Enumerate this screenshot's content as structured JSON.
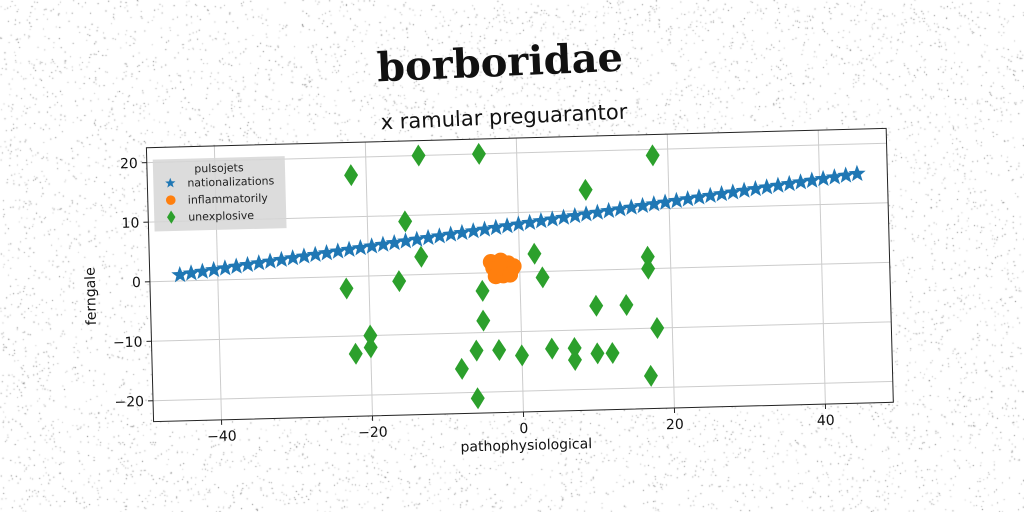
{
  "chart_data": {
    "type": "scatter",
    "suptitle": "borboridae",
    "title": "x ramular preguarantor",
    "xlabel": "pathophysiological",
    "ylabel": "ferngale",
    "xlim": [
      -49,
      49
    ],
    "ylim": [
      -23.5,
      22.5
    ],
    "xticks": [
      -40,
      -20,
      0,
      20,
      40
    ],
    "yticks": [
      -20,
      -10,
      0,
      10,
      20
    ],
    "xtick_labels": [
      "−40",
      "−20",
      "0",
      "20",
      "40"
    ],
    "ytick_labels": [
      "−20",
      "−10",
      "0",
      "10",
      "20"
    ],
    "grid": true,
    "legend": {
      "title": "pulsojets",
      "placement": "top-left"
    },
    "series": [
      {
        "name": "nationalizations",
        "marker": "star",
        "color": "#1f77b4",
        "x_start": -45,
        "x_end": 45,
        "y_start": 1.0,
        "y_end": 15.0,
        "count": 61
      },
      {
        "name": "inflammatorily",
        "marker": "circle",
        "color": "#ff7f0e",
        "points": [
          [
            -3.5,
            0.8
          ],
          [
            -2.8,
            1.2
          ],
          [
            -2.0,
            0.4
          ],
          [
            -1.5,
            1.5
          ],
          [
            -3.0,
            0.0
          ],
          [
            -2.2,
            -0.5
          ],
          [
            -1.0,
            0.6
          ],
          [
            -3.8,
            1.8
          ],
          [
            -2.5,
            2.0
          ],
          [
            -1.8,
            -0.2
          ],
          [
            -3.2,
            -0.6
          ],
          [
            -0.8,
            1.0
          ],
          [
            -2.6,
            0.9
          ],
          [
            -1.3,
            -0.4
          ]
        ]
      },
      {
        "name": "unexplosive",
        "marker": "diamond",
        "color": "#2ca02c",
        "points": [
          [
            -22,
            17
          ],
          [
            -13,
            20
          ],
          [
            -5,
            20
          ],
          [
            18,
            19
          ],
          [
            9,
            13.5
          ],
          [
            -15,
            9
          ],
          [
            -13,
            3
          ],
          [
            2,
            3
          ],
          [
            3,
            -1
          ],
          [
            17,
            2
          ],
          [
            17,
            0
          ],
          [
            -23,
            -2
          ],
          [
            -16,
            -1
          ],
          [
            -5,
            -3
          ],
          [
            10,
            -6
          ],
          [
            14,
            -6
          ],
          [
            -5,
            -8
          ],
          [
            18,
            -10
          ],
          [
            -20,
            -10
          ],
          [
            -22,
            -13
          ],
          [
            -20,
            -12
          ],
          [
            -6,
            -13
          ],
          [
            -3,
            -13
          ],
          [
            0,
            -14
          ],
          [
            4,
            -13
          ],
          [
            7,
            -13
          ],
          [
            7,
            -15
          ],
          [
            10,
            -14
          ],
          [
            12,
            -14
          ],
          [
            -8,
            -16
          ],
          [
            17,
            -18
          ],
          [
            -6,
            -21
          ]
        ]
      }
    ]
  }
}
